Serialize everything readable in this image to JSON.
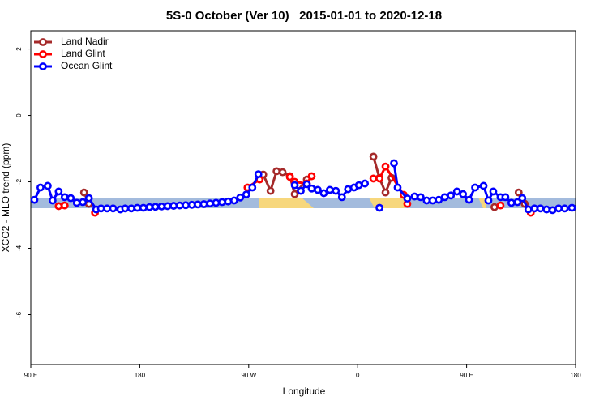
{
  "chart_data": {
    "type": "line",
    "title": "5S-0 October (Ver 10)   2015-01-01 to 2020-12-18",
    "xlabel": "Longitude",
    "ylabel": "XCO2 - MLO trend (ppm)",
    "xlim": [
      90,
      540
    ],
    "ylim": [
      -7.5,
      2.55
    ],
    "xticks": [
      {
        "value": 90,
        "label": "90 E"
      },
      180,
      {
        "value": 270,
        "label": "90 W"
      },
      {
        "value": 360,
        "label": "0"
      },
      {
        "value": 450,
        "label": "90 E"
      },
      {
        "value": 540,
        "label": "180"
      }
    ],
    "yticks": [
      -6,
      -4,
      -2,
      0,
      2
    ],
    "legend": "top-left",
    "series": [
      {
        "name": "Land Nadir",
        "color": "#a52a2a",
        "x": [
          134,
          138,
          140,
          282,
          288,
          293,
          298,
          304,
          308,
          318,
          320,
          373,
          378,
          383,
          388,
          390,
          473,
          478,
          493,
          498
        ],
        "values": [
          -2.32,
          -2.66,
          null,
          -1.78,
          -2.27,
          -1.68,
          -1.71,
          -1.83,
          -2.37,
          -1.93,
          null,
          -1.24,
          -1.88,
          -2.32,
          -1.88,
          null,
          -2.76,
          null,
          -2.32,
          -2.66
        ]
      },
      {
        "name": "Land Glint",
        "color": "#ff0000",
        "x": [
          113,
          118,
          120,
          143,
          145,
          269,
          279,
          281,
          304,
          308,
          318,
          322,
          325,
          373,
          378,
          383,
          398,
          401,
          405,
          478,
          480,
          503
        ],
        "values": [
          -2.73,
          -2.71,
          null,
          -2.93,
          null,
          -2.17,
          -1.93,
          null,
          -1.85,
          -2.0,
          -2.05,
          -1.83,
          null,
          -1.9,
          -1.9,
          -1.54,
          -2.39,
          -2.66,
          null,
          -2.71,
          null,
          -2.93
        ]
      },
      {
        "name": "Ocean Glint",
        "color": "#0000ff",
        "x": [
          93,
          98,
          104,
          108,
          113,
          118,
          123,
          128,
          133,
          138,
          144,
          148,
          153,
          158,
          164,
          168,
          173,
          178,
          183,
          188,
          193,
          198,
          203,
          208,
          213,
          218,
          223,
          228,
          233,
          238,
          243,
          248,
          253,
          258,
          263,
          268,
          273,
          278,
          290,
          308,
          313,
          318,
          322,
          327,
          332,
          337,
          342,
          347,
          352,
          357,
          361,
          366,
          372,
          378,
          384,
          390,
          393,
          401,
          407,
          412,
          417,
          422,
          427,
          432,
          437,
          442,
          447,
          452,
          457,
          464,
          468,
          472,
          478,
          482,
          487,
          492,
          496,
          501,
          506,
          511,
          516,
          521,
          526,
          531,
          537
        ],
        "values": [
          -2.54,
          -2.17,
          -2.12,
          -2.56,
          -2.29,
          -2.46,
          -2.49,
          -2.63,
          -2.61,
          -2.49,
          -2.83,
          -2.8,
          -2.8,
          -2.8,
          -2.83,
          -2.8,
          -2.8,
          -2.78,
          -2.78,
          -2.76,
          -2.75,
          -2.74,
          -2.73,
          -2.72,
          -2.71,
          -2.7,
          -2.69,
          -2.68,
          -2.67,
          -2.65,
          -2.63,
          -2.61,
          -2.59,
          -2.56,
          -2.47,
          -2.38,
          -2.17,
          -1.77,
          null,
          -2.1,
          -2.27,
          -2.07,
          -2.2,
          -2.24,
          -2.34,
          -2.24,
          -2.27,
          -2.46,
          -2.22,
          -2.17,
          -2.1,
          -2.05,
          null,
          -2.78,
          null,
          -1.44,
          -2.17,
          -2.5,
          -2.44,
          -2.46,
          -2.56,
          -2.56,
          -2.54,
          -2.46,
          -2.41,
          -2.29,
          -2.37,
          -2.54,
          -2.17,
          -2.12,
          -2.56,
          -2.29,
          -2.46,
          -2.46,
          -2.63,
          -2.61,
          -2.49,
          -2.83,
          -2.8,
          -2.8,
          -2.83,
          -2.85,
          -2.8,
          -2.8,
          -2.78
        ]
      }
    ]
  }
}
